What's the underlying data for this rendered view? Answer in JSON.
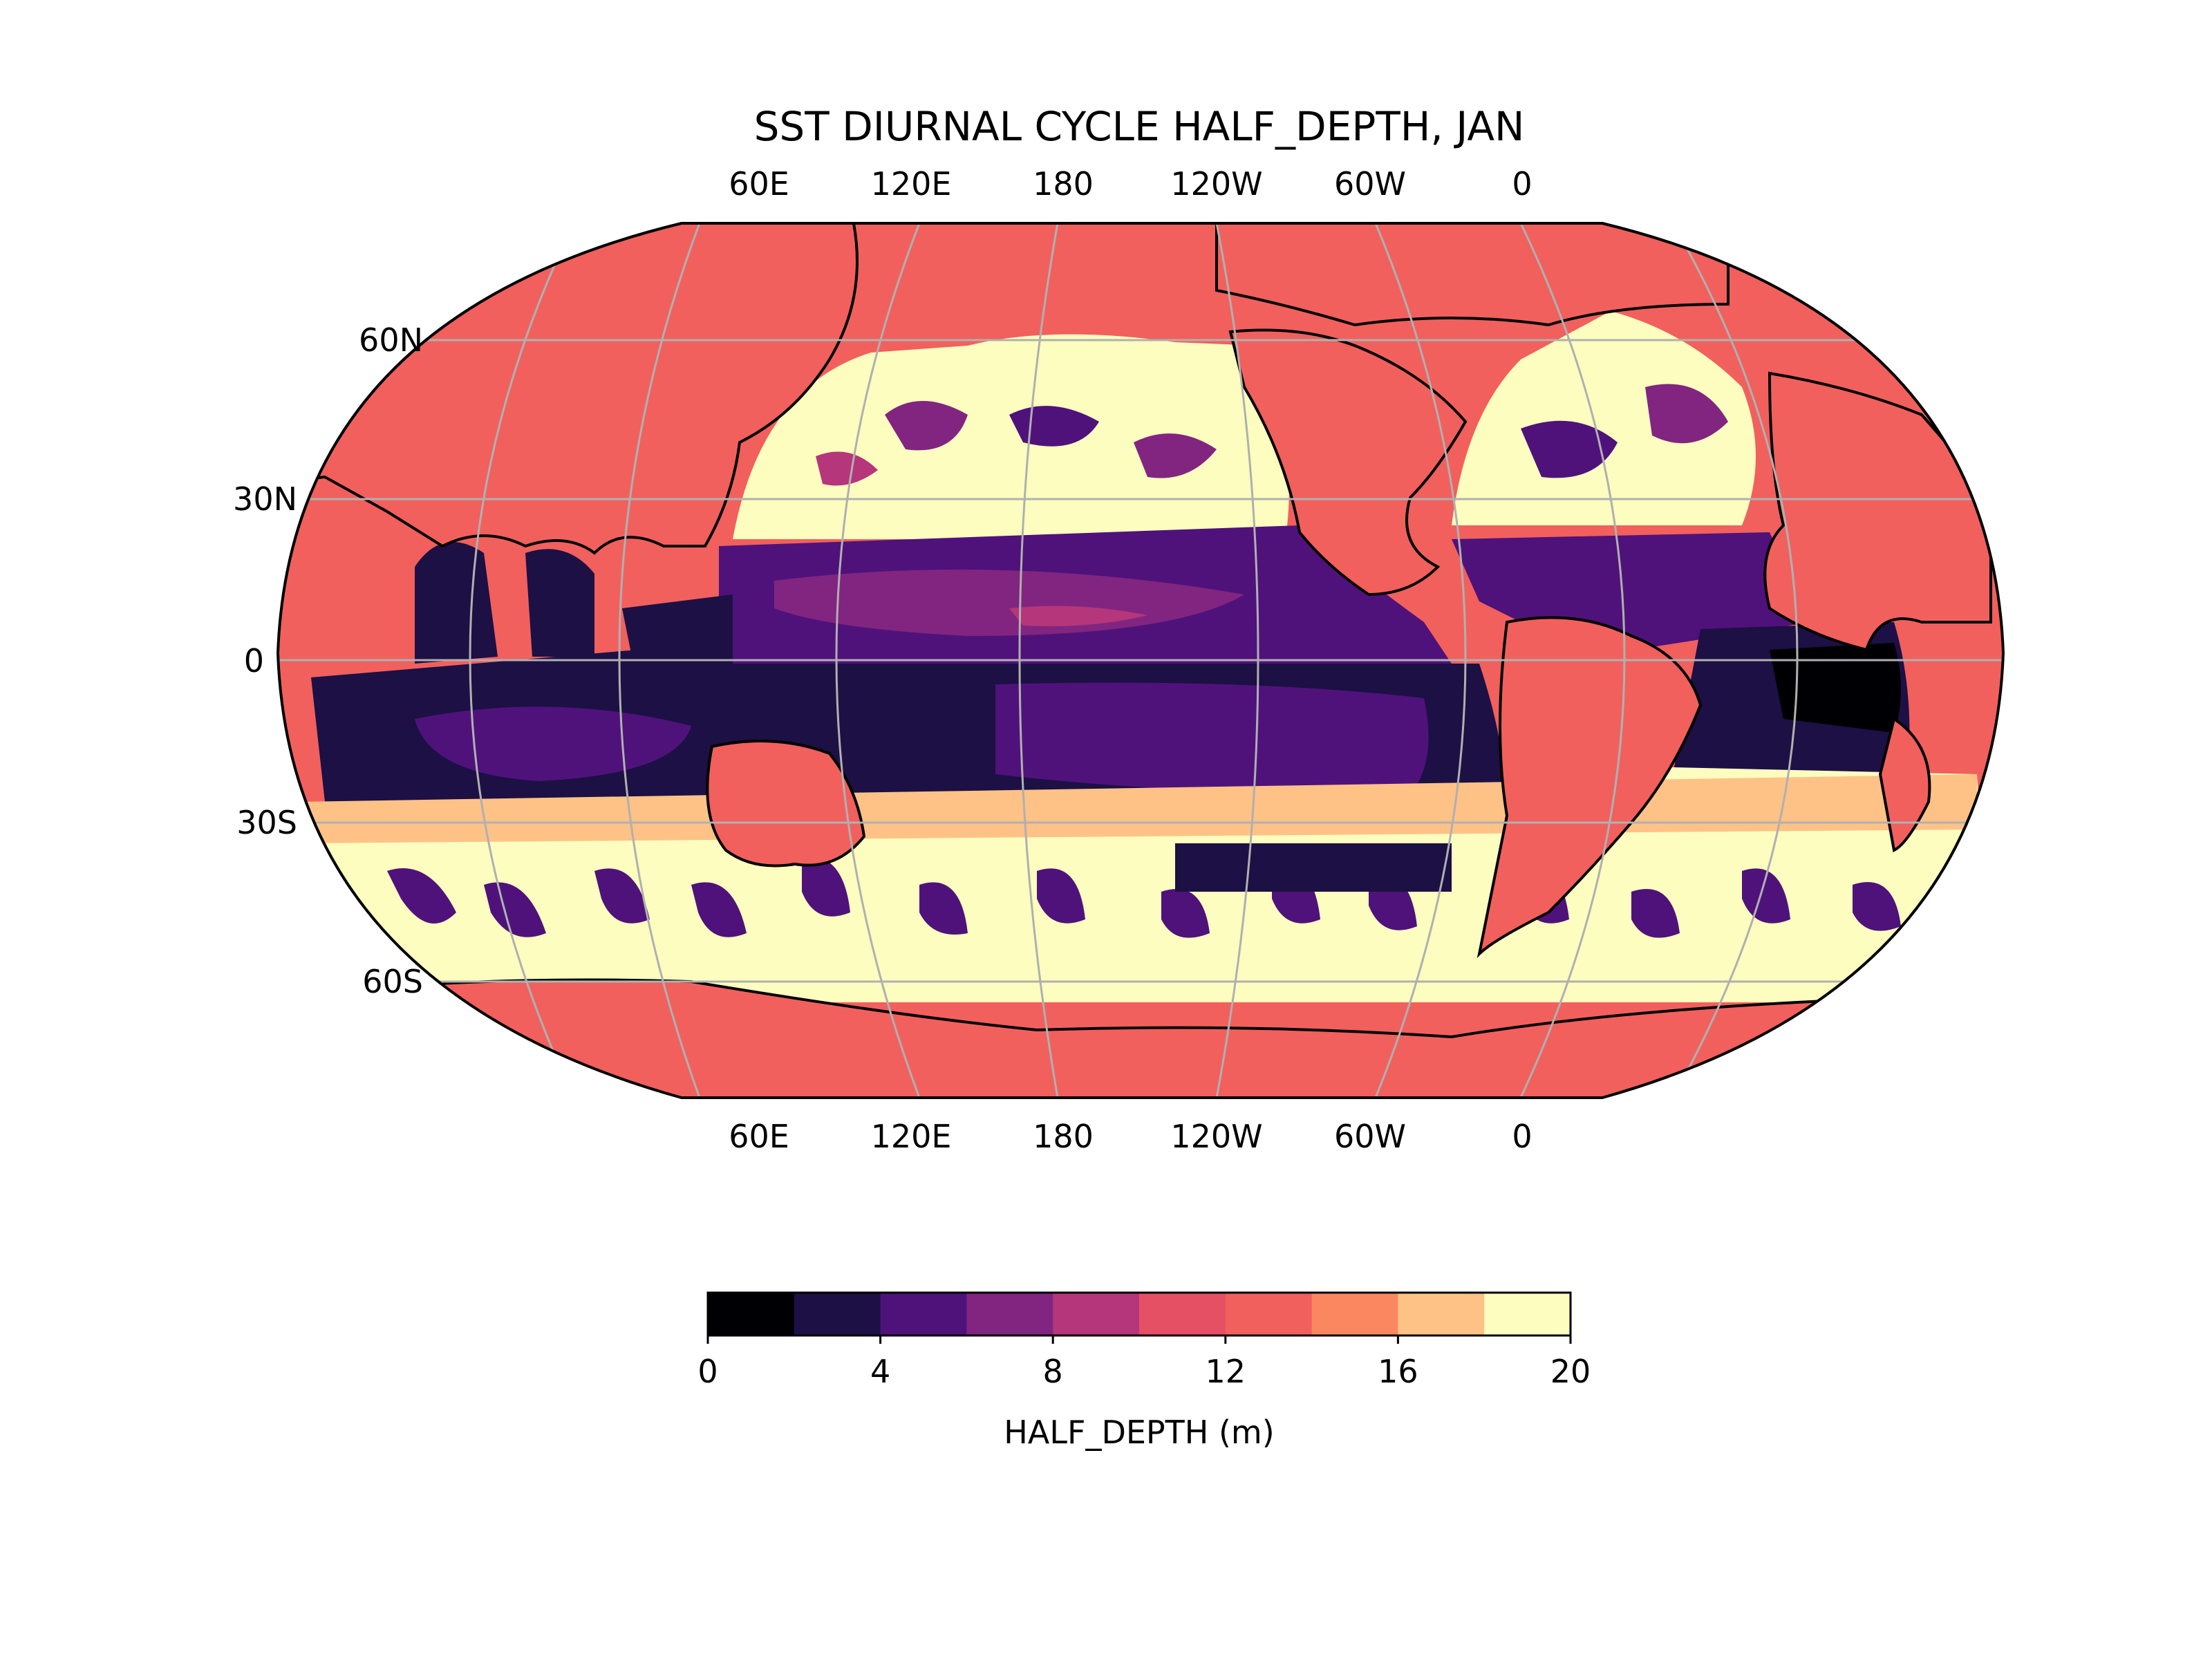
{
  "title": "SST DIURNAL CYCLE HALF_DEPTH, JAN",
  "top_lon_labels": [
    "60E",
    "120E",
    "180",
    "120W",
    "60W",
    "0"
  ],
  "bottom_lon_labels": [
    "60E",
    "120E",
    "180",
    "120W",
    "60W",
    "0"
  ],
  "lat_labels": [
    "60N",
    "30N",
    "0",
    "30S",
    "60S"
  ],
  "colorbar": {
    "label": "HALF_DEPTH (m)",
    "ticks": [
      "0",
      "4",
      "8",
      "12",
      "16",
      "20"
    ],
    "min": 0,
    "max": 20,
    "step": 2,
    "colors": [
      "#000004",
      "#1c1044",
      "#4f127b",
      "#812581",
      "#b5367a",
      "#e55064",
      "#f1605d",
      "#fb8761",
      "#fec287",
      "#fcfdbf"
    ]
  },
  "colors": {
    "land_fill": "#f1605d",
    "coastline": "#000000",
    "graticule": "#b0b0b0",
    "frame": "#000000"
  },
  "regions": {
    "land": "#f1605d",
    "tropical_band_core": "#1c1044",
    "tropical_band": "#4f127b",
    "equatorial_pacific": "#812581",
    "subtropical_north": "#fcfdbf",
    "subtropical_south": "#fcfdbf",
    "southern_ocean_patches": "#4f127b"
  }
}
